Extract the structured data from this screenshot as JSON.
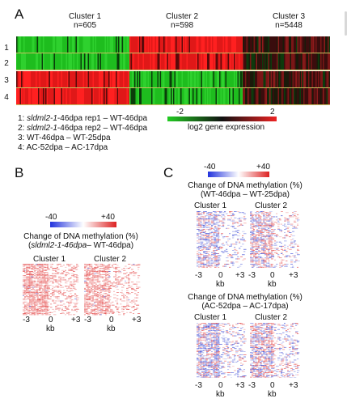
{
  "panel_a": {
    "letter": "A",
    "clusters": [
      {
        "name": "Cluster 1",
        "n": "n=605"
      },
      {
        "name": "Cluster 2",
        "n": "n=598"
      },
      {
        "name": "Cluster 3",
        "n": "n=5448"
      }
    ],
    "row_numbers": [
      "1",
      "2",
      "3",
      "4"
    ],
    "legend_lines": [
      {
        "num": "1:",
        "italic": "sldml2-1",
        "rest": "-46dpa rep1 – WT-46dpa"
      },
      {
        "num": "2:",
        "italic": "sldml2-1",
        "rest": "-46dpa rep2 – WT-46dpa"
      },
      {
        "num": "3:",
        "italic": "",
        "rest": "WT-46dpa – WT-25dpa"
      },
      {
        "num": "4:",
        "italic": "",
        "rest": "AC-52dpa – AC-17dpa"
      }
    ],
    "colorbar": {
      "min": "-2",
      "max": "2",
      "label": "log2 gene expression",
      "low_color": "#22cc22",
      "mid_color": "#111111",
      "high_color": "#ee2222"
    }
  },
  "panel_b": {
    "letter": "B",
    "scale": {
      "min": "-40",
      "max": "+40",
      "low_color": "#2233dd",
      "high_color": "#dd2222"
    },
    "title_line1": "Change of DNA methylation (%)",
    "title_italic": "sldml2-1-46dpa",
    "title_rest": "– WT-46dpa)",
    "cluster_labels": [
      "Cluster 1",
      "Cluster 2"
    ],
    "ticks": [
      "-3",
      "0",
      "+3"
    ],
    "kb": "kb"
  },
  "panel_c": {
    "letter": "C",
    "scale": {
      "min": "-40",
      "max": "+40"
    },
    "blocks": [
      {
        "title_line1": "Change of DNA methylation (%)",
        "title_line2": "(WT-46dpa – WT-25dpa)",
        "cluster_labels": [
          "Cluster 1",
          "Cluster 2"
        ]
      },
      {
        "title_line1": "Change of DNA methylation (%)",
        "title_line2": "(AC-52dpa – AC-17dpa)",
        "cluster_labels": [
          "Cluster 1",
          "Cluster 2"
        ]
      }
    ],
    "ticks": [
      "-3",
      "0",
      "+3"
    ],
    "kb": "kb"
  }
}
